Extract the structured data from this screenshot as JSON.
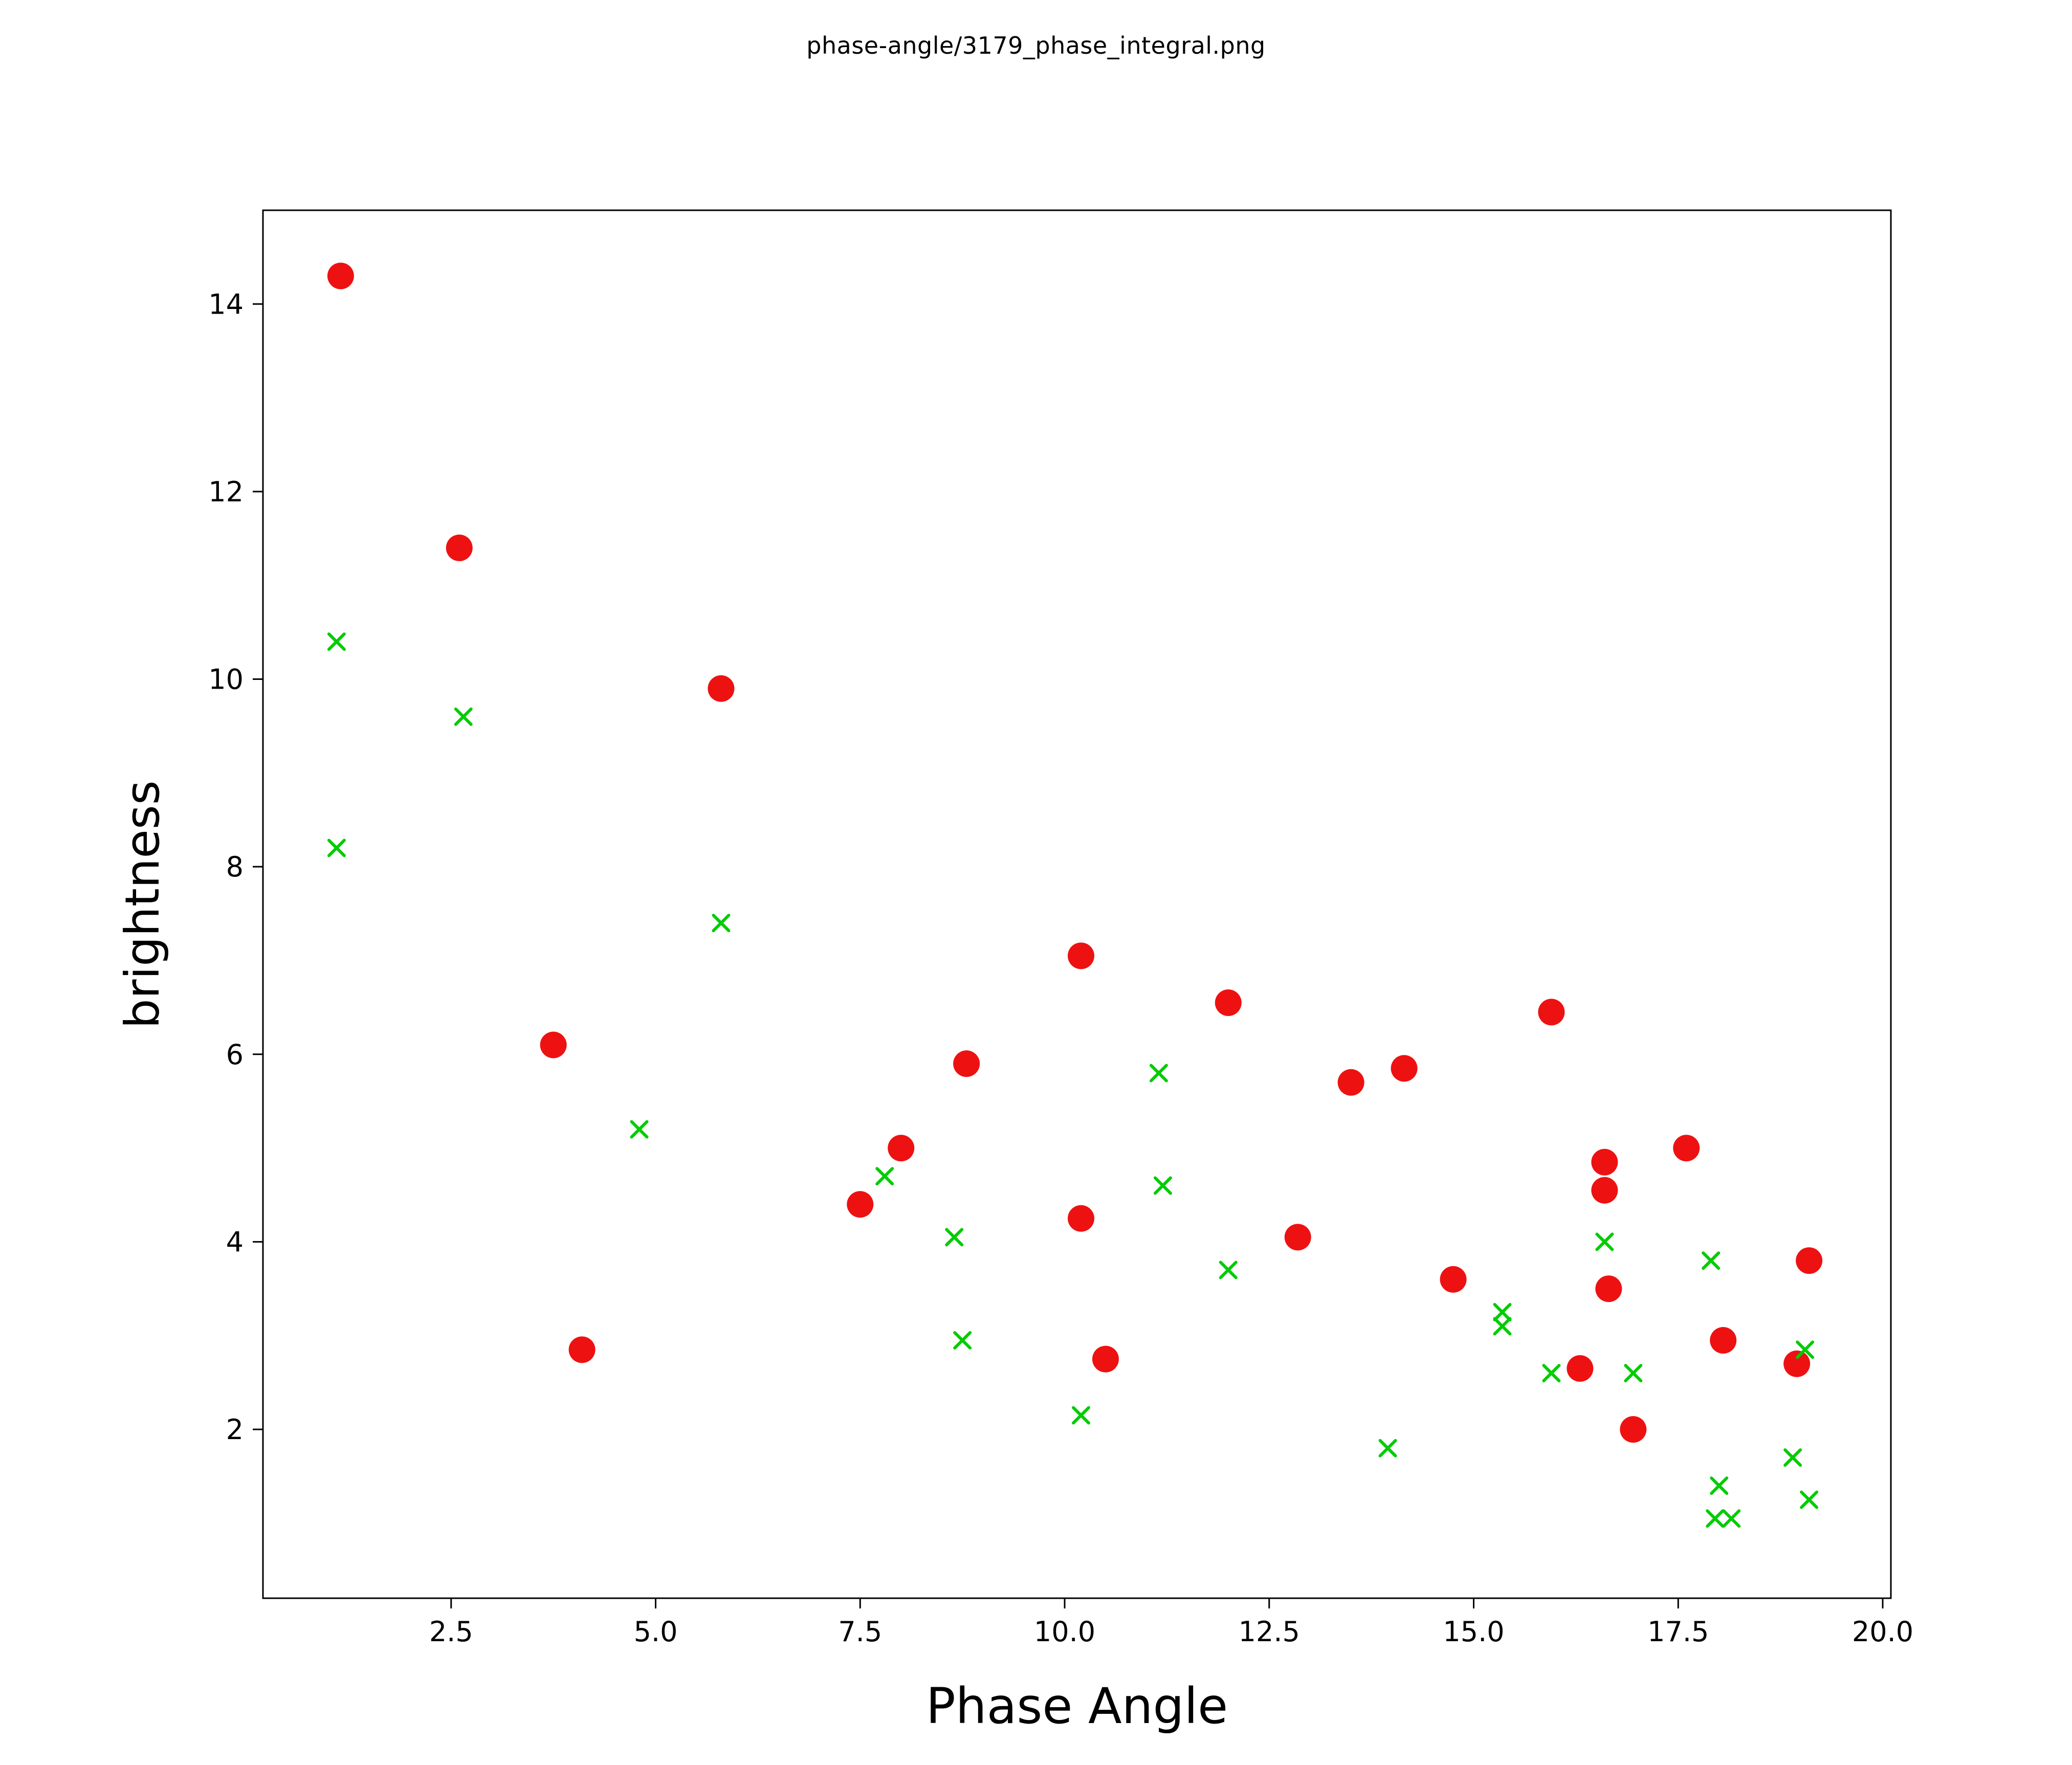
{
  "figure": {
    "title": "phase-angle/3179_phase_integral.png",
    "background_color": "#ffffff"
  },
  "chart_data": {
    "type": "scatter",
    "title": "phase-angle/3179_phase_integral.png",
    "xlabel": "Phase Angle",
    "ylabel": "brightness",
    "xlim": [
      0.2,
      20.1
    ],
    "ylim": [
      0.2,
      15.0
    ],
    "xticks": [
      2.5,
      5.0,
      7.5,
      10.0,
      12.5,
      15.0,
      17.5,
      20.0
    ],
    "xtick_labels": [
      "2.5",
      "5.0",
      "7.5",
      "10.0",
      "12.5",
      "15.0",
      "17.5",
      "20.0"
    ],
    "yticks": [
      2,
      4,
      6,
      8,
      10,
      12,
      14
    ],
    "ytick_labels": [
      "2",
      "4",
      "6",
      "8",
      "10",
      "12",
      "14"
    ],
    "grid": false,
    "legend_position": "none",
    "series": [
      {
        "name": "red-circles",
        "marker": "circle",
        "color": "#ee1111",
        "points": [
          [
            1.15,
            14.3
          ],
          [
            2.6,
            11.4
          ],
          [
            3.75,
            6.1
          ],
          [
            4.1,
            2.85
          ],
          [
            5.8,
            9.9
          ],
          [
            7.5,
            4.4
          ],
          [
            8.0,
            5.0
          ],
          [
            8.8,
            5.9
          ],
          [
            10.2,
            7.05
          ],
          [
            10.2,
            4.25
          ],
          [
            10.5,
            2.75
          ],
          [
            12.0,
            6.55
          ],
          [
            12.85,
            4.05
          ],
          [
            13.5,
            5.7
          ],
          [
            14.15,
            5.85
          ],
          [
            14.75,
            3.6
          ],
          [
            15.95,
            6.45
          ],
          [
            16.3,
            2.65
          ],
          [
            16.6,
            4.85
          ],
          [
            16.6,
            4.55
          ],
          [
            16.65,
            3.5
          ],
          [
            16.95,
            2.0
          ],
          [
            17.6,
            5.0
          ],
          [
            18.05,
            2.95
          ],
          [
            18.95,
            2.7
          ],
          [
            19.1,
            3.8
          ]
        ]
      },
      {
        "name": "green-crosses",
        "marker": "x",
        "color": "#00cc00",
        "points": [
          [
            1.1,
            10.4
          ],
          [
            1.1,
            8.2
          ],
          [
            2.65,
            9.6
          ],
          [
            4.8,
            5.2
          ],
          [
            5.8,
            7.4
          ],
          [
            7.8,
            4.7
          ],
          [
            8.65,
            4.05
          ],
          [
            8.75,
            2.95
          ],
          [
            10.2,
            2.15
          ],
          [
            11.15,
            5.8
          ],
          [
            11.2,
            4.6
          ],
          [
            12.0,
            3.7
          ],
          [
            13.95,
            1.8
          ],
          [
            15.35,
            3.25
          ],
          [
            15.35,
            3.1
          ],
          [
            15.95,
            2.6
          ],
          [
            16.6,
            4.0
          ],
          [
            16.95,
            2.6
          ],
          [
            17.9,
            3.8
          ],
          [
            18.0,
            1.4
          ],
          [
            17.95,
            1.05
          ],
          [
            18.15,
            1.05
          ],
          [
            18.9,
            1.7
          ],
          [
            19.05,
            2.85
          ],
          [
            19.1,
            1.25
          ]
        ]
      }
    ]
  }
}
